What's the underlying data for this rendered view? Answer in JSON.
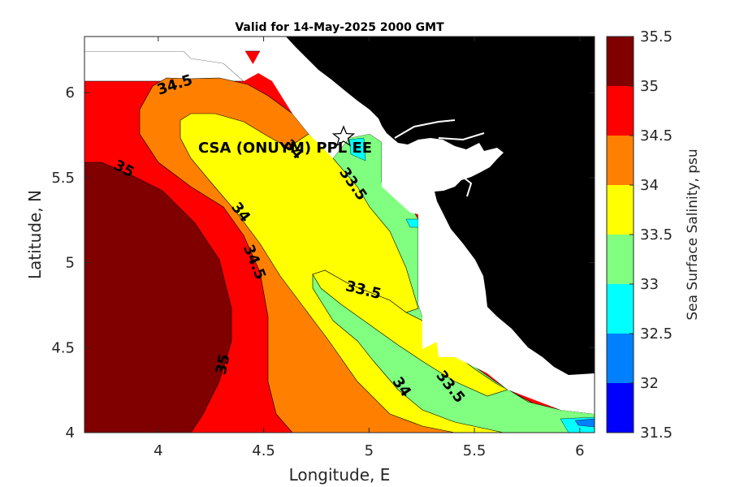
{
  "chart_data": {
    "type": "contourf",
    "title": "Valid for 14-May-2025 2000 GMT",
    "xlabel": "Longitude, E",
    "ylabel": "Latitude, N",
    "xlim": [
      3.65,
      6.07
    ],
    "ylim": [
      4.0,
      6.33
    ],
    "xticks": [
      "4",
      "4.5",
      "5",
      "5.5",
      "6"
    ],
    "yticks": [
      "4",
      "4.5",
      "5",
      "5.5",
      "6"
    ],
    "colorbar": {
      "label": "Sea Surface Salinity, psu",
      "ticks": [
        "31.5",
        "32",
        "32.5",
        "33",
        "33.5",
        "34",
        "34.5",
        "35",
        "35.5"
      ],
      "levels": [
        {
          "range": [
            31.5,
            32.0
          ],
          "color": "#0000ff"
        },
        {
          "range": [
            32.0,
            32.5
          ],
          "color": "#0080ff"
        },
        {
          "range": [
            32.5,
            33.0
          ],
          "color": "#00ffff"
        },
        {
          "range": [
            33.0,
            33.5
          ],
          "color": "#80ff80"
        },
        {
          "range": [
            33.5,
            34.0
          ],
          "color": "#ffff00"
        },
        {
          "range": [
            34.0,
            34.5
          ],
          "color": "#ff8000"
        },
        {
          "range": [
            34.5,
            35.0
          ],
          "color": "#ff0000"
        },
        {
          "range": [
            35.0,
            35.5
          ],
          "color": "#800000"
        }
      ]
    },
    "contour_labels": [
      "34.5",
      "35",
      "34",
      "34.5",
      "35",
      "34",
      "33.5",
      "33.5",
      "34",
      "33.5"
    ],
    "site_label": "CSA (ONUYM) PPL EE",
    "land_color": "#000000",
    "grid": false
  }
}
